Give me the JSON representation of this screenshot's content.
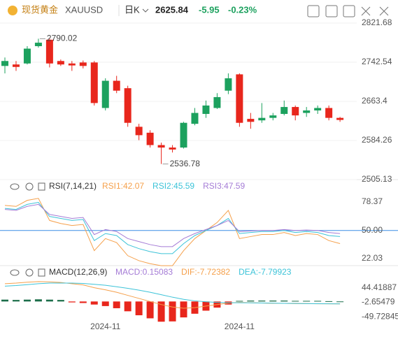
{
  "header": {
    "symbol_name": "现货黄金",
    "symbol": "XAUUSD",
    "period": "日K",
    "price": "2625.84",
    "change": "-5.95",
    "change_pct": "-0.23%"
  },
  "chart_data": [
    {
      "type": "candlestick",
      "categories": [
        null,
        null,
        null,
        null,
        null,
        null,
        null,
        null,
        null,
        "2024-11",
        null,
        null,
        null,
        null,
        null,
        null,
        null,
        null,
        null,
        null,
        null,
        "2024-11",
        null,
        null,
        null,
        null,
        null,
        null,
        null,
        null,
        null
      ],
      "open": [
        2735,
        2738,
        2740,
        2775,
        2788,
        2745,
        2740,
        2742,
        2742,
        2650,
        2705,
        2690,
        2612,
        2600,
        2575,
        2570,
        2570,
        2618,
        2638,
        2650,
        2685,
        2718,
        2628,
        2625,
        2630,
        2638,
        2652,
        2640,
        2645,
        2650,
        2630
      ],
      "close": [
        2745,
        2733,
        2770,
        2782,
        2740,
        2738,
        2736,
        2735,
        2660,
        2705,
        2685,
        2620,
        2595,
        2575,
        2570,
        2566,
        2620,
        2640,
        2655,
        2672,
        2710,
        2620,
        2622,
        2630,
        2635,
        2652,
        2635,
        2645,
        2650,
        2630,
        2625.84
      ],
      "high": [
        2752,
        2745,
        2775,
        2790.02,
        2790,
        2748,
        2745,
        2746,
        2745,
        2710,
        2715,
        2695,
        2618,
        2605,
        2580,
        2575,
        2622,
        2650,
        2665,
        2680,
        2720,
        2720,
        2640,
        2660,
        2640,
        2665,
        2655,
        2652,
        2655,
        2655,
        2632
      ],
      "low": [
        2720,
        2725,
        2738,
        2772,
        2732,
        2735,
        2725,
        2730,
        2655,
        2645,
        2680,
        2612,
        2585,
        2570,
        2536.78,
        2560,
        2568,
        2615,
        2630,
        2648,
        2678,
        2612,
        2608,
        2620,
        2625,
        2635,
        2625,
        2632,
        2638,
        2625,
        2622
      ],
      "up_color": "#1ca15e",
      "down_color": "#e8261c",
      "annotations": [
        {
          "text": "2790.02",
          "index": 3,
          "value": 2790.02
        },
        {
          "text": "2536.78",
          "index": 14,
          "value": 2536.78
        }
      ],
      "ylim": [
        2505.13,
        2821.68
      ],
      "yticks": [
        2821.68,
        2742.54,
        2663.4,
        2584.26,
        2505.13
      ],
      "grid": true
    },
    {
      "type": "line",
      "title": "RSI(7,14,21)",
      "series": [
        {
          "name": "RSI1:42.07",
          "color": "#f5a04b",
          "values": [
            75,
            74,
            80,
            82,
            60,
            57,
            55,
            56,
            30,
            42,
            38,
            25,
            20,
            17,
            15,
            15,
            30,
            42,
            50,
            58,
            70,
            42,
            44,
            46,
            46,
            48,
            45,
            47,
            46,
            40,
            37
          ]
        },
        {
          "name": "RSI2:45.59",
          "color": "#3cc3d8",
          "values": [
            72,
            71,
            76,
            78,
            64,
            62,
            60,
            61,
            40,
            47,
            45,
            36,
            32,
            29,
            27,
            27,
            37,
            45,
            50,
            55,
            62,
            47,
            48,
            49,
            49,
            50,
            48,
            49,
            48,
            45,
            44
          ]
        },
        {
          "name": "RSI3:47.59",
          "color": "#a57cd6",
          "values": [
            71,
            70,
            74,
            76,
            66,
            64,
            62,
            63,
            46,
            51,
            49,
            42,
            39,
            36,
            34,
            34,
            42,
            47,
            51,
            55,
            60,
            49,
            49.5,
            50,
            50,
            51,
            50,
            50.5,
            50,
            48,
            47
          ]
        }
      ],
      "ylim": [
        16.5,
        86.7
      ],
      "yticks": [
        78.37,
        {
          "value": 50,
          "label": "50.00"
        },
        22.03
      ],
      "midline_color": "#3a8ee6"
    },
    {
      "type": "macd",
      "title": "MACD(12,26,9)",
      "series": [
        {
          "name": "MACD:0.15083",
          "color": "#a57cd6",
          "kind": "bar",
          "values": [
            6,
            5,
            6,
            7,
            6,
            5,
            -3,
            -5,
            -10,
            -15,
            -22,
            -32,
            -45,
            -55,
            -66,
            -65,
            -52,
            -40,
            -30,
            -20,
            -10,
            2,
            3,
            3,
            3,
            3,
            2,
            2,
            2,
            1,
            0.15
          ]
        },
        {
          "name": "DIF:-7.72382",
          "color": "#f5a04b",
          "values": [
            58,
            60,
            63,
            65,
            64,
            62,
            58,
            54,
            45,
            38,
            30,
            20,
            10,
            0,
            -10,
            -18,
            -22,
            -20,
            -15,
            -10,
            -5,
            -3,
            -4,
            -5,
            -6,
            -6,
            -7,
            -7,
            -7.5,
            -7.6,
            -7.72
          ]
        },
        {
          "name": "DEA:-7.79923",
          "color": "#3cc3d8",
          "values": [
            50,
            52,
            55,
            58,
            60,
            60,
            60,
            59,
            56,
            53,
            48,
            43,
            37,
            30,
            22,
            14,
            7,
            2,
            -1,
            -3,
            -4,
            -4,
            -4.5,
            -5,
            -5.5,
            -6,
            -6.5,
            -7,
            -7.4,
            -7.6,
            -7.8
          ]
        }
      ],
      "positive_color": "#1c6e4a",
      "negative_color": "#e8261c",
      "ylim": [
        -70,
        76
      ],
      "yticks": [
        44.41887,
        -2.65479,
        -49.72845
      ]
    }
  ]
}
